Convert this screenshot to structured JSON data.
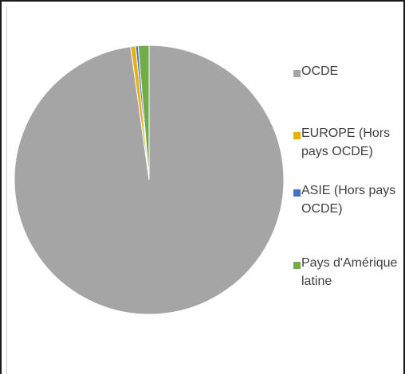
{
  "chart_data": {
    "type": "pie",
    "title": "",
    "slices": [
      {
        "label": "OCDE",
        "value": 97.8,
        "color": "#a5a5a5"
      },
      {
        "label": "EUROPE (Hors pays OCDE)",
        "value": 0.6,
        "color": "#e8b00e"
      },
      {
        "label": "ASIE (Hors pays OCDE)",
        "value": 0.3,
        "color": "#4472c4"
      },
      {
        "label": "Pays d'Amérique latine",
        "value": 1.3,
        "color": "#70ad47"
      }
    ],
    "legend_position": "right"
  }
}
